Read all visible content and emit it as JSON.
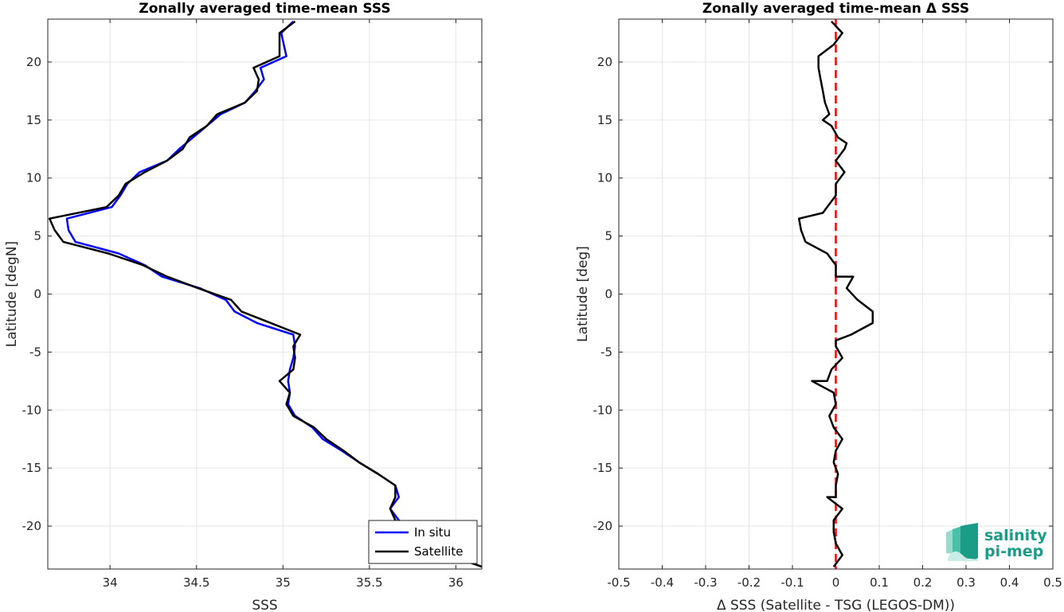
{
  "chart_data": [
    {
      "type": "line",
      "title": "Zonally averaged time-mean SSS",
      "xlabel": "SSS",
      "ylabel": "Latitude [degN]",
      "xlim": [
        33.64,
        36.15
      ],
      "ylim": [
        -23.7,
        23.7
      ],
      "xticks": [
        34,
        34.5,
        35,
        35.5,
        36
      ],
      "yticks": [
        -20,
        -15,
        -10,
        -5,
        0,
        5,
        10,
        15,
        20
      ],
      "grid": true,
      "legend": "bottom-right",
      "series": [
        {
          "name": "In situ",
          "color": "#0000ff",
          "points": [
            [
              35.06,
              23.5
            ],
            [
              34.99,
              22.5
            ],
            [
              35.02,
              20.5
            ],
            [
              34.87,
              19.5
            ],
            [
              34.89,
              18.5
            ],
            [
              34.84,
              17.5
            ],
            [
              34.78,
              16.5
            ],
            [
              34.64,
              15.5
            ],
            [
              34.56,
              14.5
            ],
            [
              34.48,
              13.5
            ],
            [
              34.4,
              12.5
            ],
            [
              34.33,
              11.5
            ],
            [
              34.17,
              10.5
            ],
            [
              34.1,
              9.5
            ],
            [
              34.06,
              8.5
            ],
            [
              34.01,
              7.5
            ],
            [
              33.75,
              6.5
            ],
            [
              33.76,
              5.5
            ],
            [
              33.8,
              4.5
            ],
            [
              34.05,
              3.5
            ],
            [
              34.2,
              2.5
            ],
            [
              34.3,
              1.5
            ],
            [
              34.52,
              0.5
            ],
            [
              34.67,
              -0.5
            ],
            [
              34.72,
              -1.5
            ],
            [
              34.85,
              -2.5
            ],
            [
              35.06,
              -3.5
            ],
            [
              35.07,
              -4.5
            ],
            [
              35.06,
              -5.5
            ],
            [
              35.04,
              -6.5
            ],
            [
              35.03,
              -7.5
            ],
            [
              35.04,
              -8.5
            ],
            [
              35.03,
              -9.5
            ],
            [
              35.07,
              -10.5
            ],
            [
              35.17,
              -11.5
            ],
            [
              35.23,
              -12.5
            ],
            [
              35.34,
              -13.5
            ],
            [
              35.44,
              -14.5
            ],
            [
              35.55,
              -15.5
            ],
            [
              35.65,
              -16.5
            ],
            [
              35.67,
              -17.5
            ],
            [
              35.62,
              -18.5
            ],
            [
              35.67,
              -19.5
            ],
            [
              35.76,
              -20.5
            ],
            [
              35.86,
              -21.5
            ],
            [
              35.96,
              -22.5
            ],
            [
              36.15,
              -23.5
            ]
          ]
        },
        {
          "name": "Satellite",
          "color": "#000000",
          "points": [
            [
              35.07,
              23.5
            ],
            [
              34.98,
              22.5
            ],
            [
              34.98,
              20.5
            ],
            [
              34.83,
              19.5
            ],
            [
              34.86,
              18.5
            ],
            [
              34.85,
              17.5
            ],
            [
              34.78,
              16.5
            ],
            [
              34.62,
              15.5
            ],
            [
              34.56,
              14.5
            ],
            [
              34.46,
              13.5
            ],
            [
              34.42,
              12.5
            ],
            [
              34.33,
              11.5
            ],
            [
              34.2,
              10.5
            ],
            [
              34.09,
              9.5
            ],
            [
              34.05,
              8.5
            ],
            [
              33.98,
              7.5
            ],
            [
              33.65,
              6.5
            ],
            [
              33.68,
              5.5
            ],
            [
              33.73,
              4.5
            ],
            [
              33.99,
              3.5
            ],
            [
              34.19,
              2.5
            ],
            [
              34.33,
              1.5
            ],
            [
              34.51,
              0.5
            ],
            [
              34.7,
              -0.5
            ],
            [
              34.76,
              -1.5
            ],
            [
              34.93,
              -2.5
            ],
            [
              35.1,
              -3.5
            ],
            [
              35.06,
              -4.5
            ],
            [
              35.07,
              -5.5
            ],
            [
              35.06,
              -6.5
            ],
            [
              34.98,
              -7.5
            ],
            [
              35.04,
              -8.5
            ],
            [
              35.02,
              -9.5
            ],
            [
              35.06,
              -10.5
            ],
            [
              35.18,
              -11.5
            ],
            [
              35.25,
              -12.5
            ],
            [
              35.35,
              -13.5
            ],
            [
              35.44,
              -14.5
            ],
            [
              35.55,
              -15.5
            ],
            [
              35.65,
              -16.5
            ],
            [
              35.65,
              -17.5
            ],
            [
              35.62,
              -18.5
            ],
            [
              35.65,
              -19.5
            ],
            [
              35.76,
              -20.5
            ],
            [
              35.86,
              -21.5
            ],
            [
              35.96,
              -22.5
            ],
            [
              36.15,
              -23.5
            ]
          ]
        }
      ]
    },
    {
      "type": "line",
      "title": "Zonally averaged time-mean Δ SSS",
      "xlabel": "Δ SSS (Satellite - TSG (LEGOS-DM))",
      "ylabel": "Latitude [deg]",
      "xlim": [
        -0.5,
        0.5
      ],
      "ylim": [
        -23.7,
        23.7
      ],
      "xticks": [
        -0.5,
        -0.4,
        -0.3,
        -0.2,
        -0.1,
        0,
        0.1,
        0.2,
        0.3,
        0.4,
        0.5
      ],
      "yticks": [
        -20,
        -15,
        -10,
        -5,
        0,
        5,
        10,
        15,
        20
      ],
      "grid": true,
      "series": [
        {
          "color": "#000000",
          "points": [
            [
              -0.01,
              23.5
            ],
            [
              0.015,
              22.5
            ],
            [
              -0.005,
              21.5
            ],
            [
              -0.04,
              20.5
            ],
            [
              -0.04,
              19.5
            ],
            [
              -0.035,
              18.5
            ],
            [
              -0.03,
              17.5
            ],
            [
              -0.025,
              16.5
            ],
            [
              -0.015,
              15.5
            ],
            [
              -0.03,
              15.0
            ],
            [
              -0.01,
              14.5
            ],
            [
              0.005,
              13.5
            ],
            [
              0.025,
              13.0
            ],
            [
              0.02,
              12.5
            ],
            [
              0.0,
              11.5
            ],
            [
              0.01,
              11.0
            ],
            [
              0.02,
              10.5
            ],
            [
              0.0,
              9.5
            ],
            [
              0.0,
              8.5
            ],
            [
              -0.03,
              7.0
            ],
            [
              -0.085,
              6.5
            ],
            [
              -0.08,
              5.5
            ],
            [
              -0.07,
              4.5
            ],
            [
              -0.02,
              3.5
            ],
            [
              0.0,
              2.5
            ],
            [
              0.0,
              1.5
            ],
            [
              0.04,
              1.5
            ],
            [
              0.025,
              0.5
            ],
            [
              0.05,
              -0.5
            ],
            [
              0.085,
              -1.5
            ],
            [
              0.085,
              -2.5
            ],
            [
              0.035,
              -3.5
            ],
            [
              0.0,
              -4.0
            ],
            [
              0.0,
              -4.5
            ],
            [
              0.015,
              -5.5
            ],
            [
              -0.01,
              -6.5
            ],
            [
              -0.02,
              -7.5
            ],
            [
              -0.055,
              -7.5
            ],
            [
              -0.005,
              -8.5
            ],
            [
              0.0,
              -9.5
            ],
            [
              -0.015,
              -10.5
            ],
            [
              -0.005,
              -11.5
            ],
            [
              0.015,
              -12.5
            ],
            [
              0.0,
              -13.5
            ],
            [
              -0.005,
              -14.5
            ],
            [
              0.005,
              -15.5
            ],
            [
              0.0,
              -16.5
            ],
            [
              0.0,
              -17.5
            ],
            [
              -0.02,
              -17.5
            ],
            [
              0.015,
              -18.5
            ],
            [
              -0.005,
              -19.5
            ],
            [
              -0.005,
              -20.5
            ],
            [
              0.0,
              -21.5
            ],
            [
              0.015,
              -22.5
            ],
            [
              -0.005,
              -23.5
            ]
          ]
        }
      ],
      "reference_line": {
        "x": 0,
        "color": "#ff0000",
        "style": "dashed"
      }
    }
  ],
  "logo": {
    "line1": "salinity",
    "line2": "pi-mep",
    "color": "#1a9c87"
  }
}
